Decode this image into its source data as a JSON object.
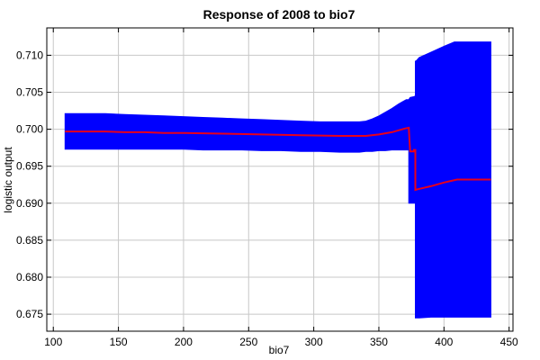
{
  "chart_data": {
    "type": "area",
    "title": "Response of 2008 to bio7",
    "xlabel": "bio7",
    "ylabel": "logistic output",
    "xlim": [
      95,
      453
    ],
    "ylim": [
      0.6727,
      0.7137
    ],
    "xticks": [
      100,
      150,
      200,
      250,
      300,
      350,
      400,
      450
    ],
    "yticks": [
      0.675,
      0.68,
      0.685,
      0.69,
      0.695,
      0.7,
      0.705,
      0.71
    ],
    "xtick_labels": [
      "100",
      "150",
      "200",
      "250",
      "300",
      "350",
      "400",
      "450"
    ],
    "ytick_labels": [
      "0.675",
      "0.680",
      "0.685",
      "0.690",
      "0.695",
      "0.700",
      "0.705",
      "0.710"
    ],
    "grid": true,
    "series": [
      {
        "kind": "band",
        "color": "#0000ff",
        "x": [
          109,
          110,
          125,
          140,
          155,
          170,
          185,
          200,
          215,
          230,
          245,
          260,
          275,
          290,
          305,
          320,
          335,
          340,
          345,
          350,
          355,
          360,
          365,
          368,
          371,
          373,
          373,
          374,
          377,
          378,
          378,
          379,
          380,
          381,
          390,
          400,
          408,
          410,
          420,
          436
        ],
        "upper": [
          0.7021,
          0.7021,
          0.7021,
          0.7021,
          0.702,
          0.7019,
          0.7018,
          0.7017,
          0.7016,
          0.7015,
          0.7014,
          0.7013,
          0.7012,
          0.7011,
          0.701,
          0.701,
          0.701,
          0.7011,
          0.7014,
          0.7018,
          0.7023,
          0.7028,
          0.7034,
          0.7037,
          0.704,
          0.704,
          0.704,
          0.7043,
          0.7044,
          0.7045,
          0.7092,
          0.7093,
          0.7095,
          0.7097,
          0.7104,
          0.7112,
          0.7118,
          0.7118,
          0.7118,
          0.7118
        ],
        "lower": [
          0.6973,
          0.6973,
          0.6973,
          0.6973,
          0.6973,
          0.6973,
          0.6973,
          0.6973,
          0.6972,
          0.6972,
          0.6972,
          0.6971,
          0.6971,
          0.697,
          0.697,
          0.6969,
          0.6969,
          0.697,
          0.697,
          0.6971,
          0.6971,
          0.6972,
          0.6972,
          0.6972,
          0.6972,
          0.6972,
          0.69,
          0.69,
          0.69,
          0.69,
          0.6745,
          0.6745,
          0.6745,
          0.6745,
          0.6746,
          0.6746,
          0.6746,
          0.6746,
          0.6746,
          0.6746
        ]
      },
      {
        "kind": "line",
        "color": "#e8001a",
        "x": [
          109,
          140,
          155,
          170,
          185,
          200,
          230,
          260,
          290,
          320,
          335,
          340,
          350,
          360,
          370,
          373,
          374,
          377,
          377,
          378,
          378,
          380,
          390,
          400,
          410,
          420,
          436
        ],
        "y": [
          0.6997,
          0.6997,
          0.6996,
          0.6996,
          0.6995,
          0.6995,
          0.6994,
          0.6993,
          0.6992,
          0.6991,
          0.6991,
          0.6991,
          0.6993,
          0.6996,
          0.7001,
          0.7002,
          0.697,
          0.697,
          0.6972,
          0.6972,
          0.6918,
          0.6919,
          0.6923,
          0.6928,
          0.6932,
          0.6932,
          0.6932
        ]
      }
    ]
  }
}
